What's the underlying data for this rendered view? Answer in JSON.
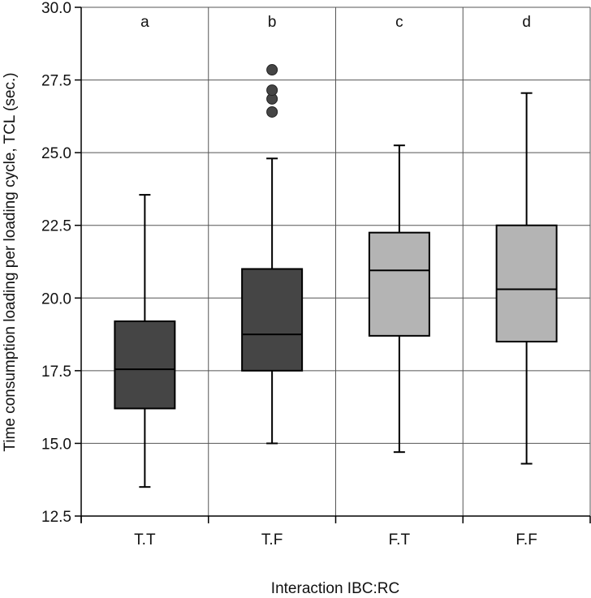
{
  "chart_data": {
    "type": "box",
    "xlabel": "Interaction IBC:RC",
    "ylabel": "Time consumption loading per loading cycle, TCL (sec.)",
    "ylim": [
      12.5,
      30.0
    ],
    "yticks": [
      "12.5",
      "15.0",
      "17.5",
      "20.0",
      "22.5",
      "25.0",
      "27.5",
      "30.0"
    ],
    "grid": true,
    "categories": [
      "T.T",
      "T.F",
      "F.T",
      "F.F"
    ],
    "groups": [
      {
        "category": "T.T",
        "letter": "a",
        "whisker_low": 13.5,
        "q1": 16.2,
        "median": 17.55,
        "q3": 19.2,
        "whisker_high": 23.55,
        "outliers": [],
        "fill": "#454545"
      },
      {
        "category": "T.F",
        "letter": "b",
        "whisker_low": 15.0,
        "q1": 17.5,
        "median": 18.75,
        "q3": 21.0,
        "whisker_high": 24.8,
        "outliers": [
          26.4,
          26.85,
          27.15,
          27.85
        ],
        "fill": "#454545"
      },
      {
        "category": "F.T",
        "letter": "c",
        "whisker_low": 14.7,
        "q1": 18.7,
        "median": 20.95,
        "q3": 22.25,
        "whisker_high": 25.25,
        "outliers": [],
        "fill": "#b4b4b4"
      },
      {
        "category": "F.F",
        "letter": "d",
        "whisker_low": 14.3,
        "q1": 18.5,
        "median": 20.3,
        "q3": 22.5,
        "whisker_high": 27.05,
        "outliers": [],
        "fill": "#b4b4b4"
      }
    ]
  }
}
